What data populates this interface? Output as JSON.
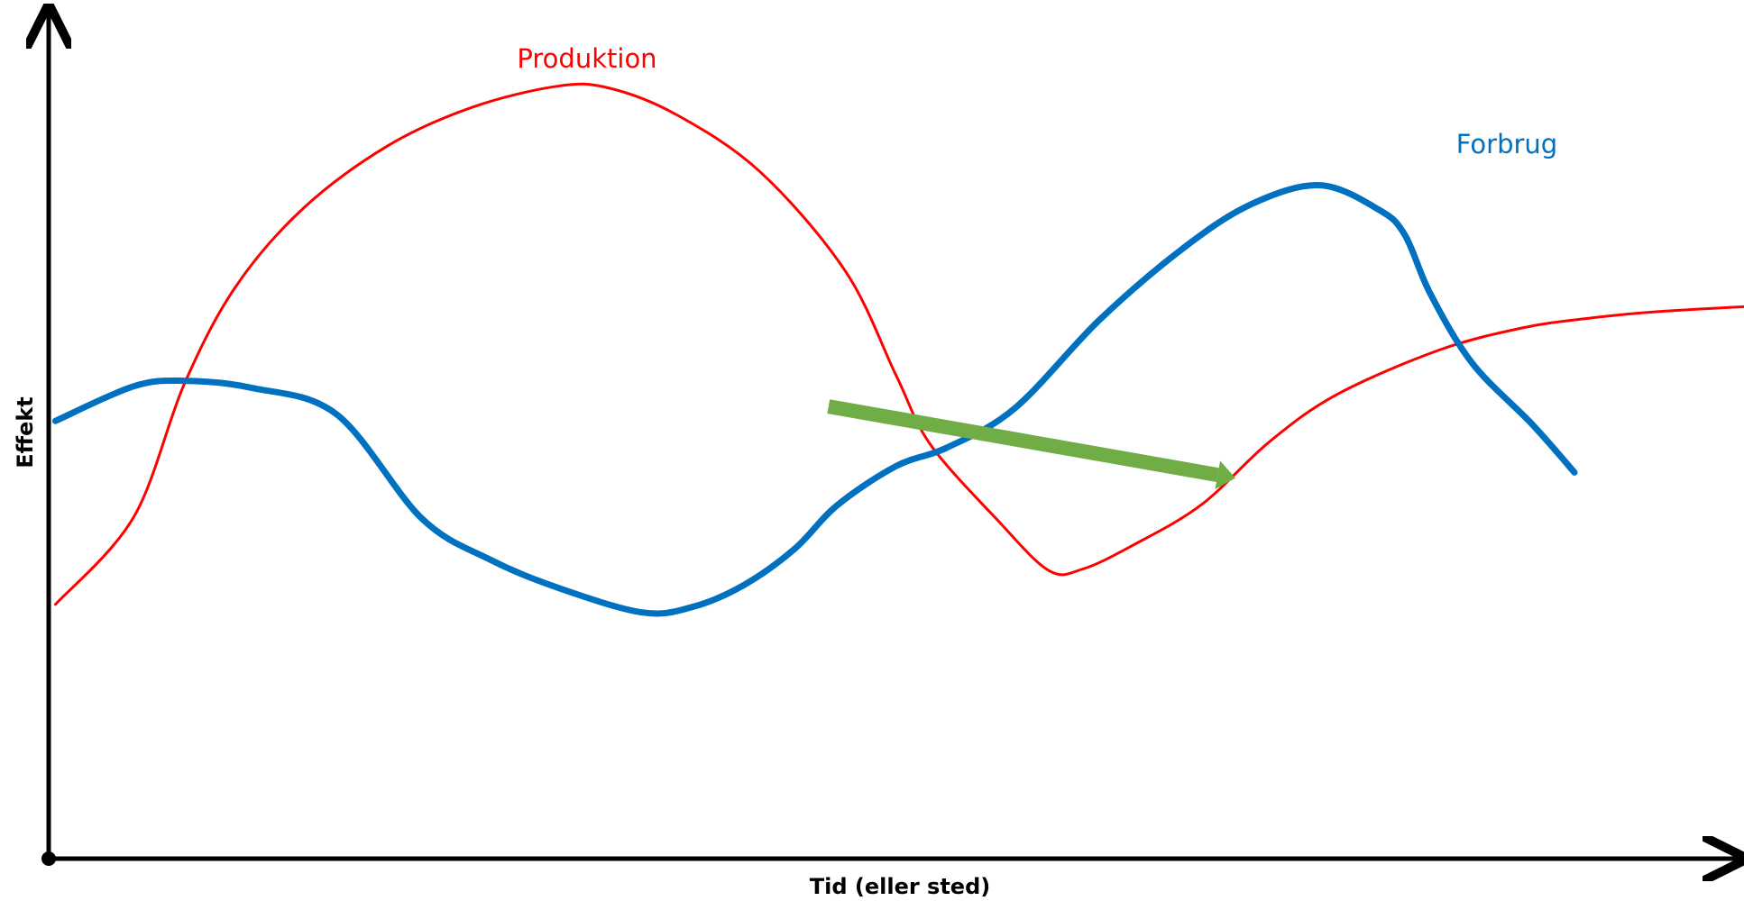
{
  "chart_data": {
    "type": "line",
    "title": "",
    "xlabel": "Tid (eller sted)",
    "ylabel": "Effekt",
    "xlim": [
      0,
      1
    ],
    "ylim": [
      0,
      1
    ],
    "grid": false,
    "legend": "none",
    "series": [
      {
        "name": "Produktion",
        "color": "#ff0000",
        "x": [
          0.004,
          0.05,
          0.08,
          0.11,
          0.15,
          0.2,
          0.25,
          0.3,
          0.33,
          0.37,
          0.42,
          0.47,
          0.5,
          0.52,
          0.56,
          0.59,
          0.61,
          0.64,
          0.68,
          0.72,
          0.76,
          0.82,
          0.87,
          0.91,
          0.95,
          1.0
        ],
        "y": [
          0.316,
          0.424,
          0.59,
          0.71,
          0.808,
          0.886,
          0.934,
          0.96,
          0.958,
          0.925,
          0.853,
          0.73,
          0.6,
          0.515,
          0.42,
          0.358,
          0.36,
          0.39,
          0.44,
          0.518,
          0.577,
          0.632,
          0.66,
          0.672,
          0.68,
          0.686
        ]
      },
      {
        "name": "Forbrug",
        "color": "#0070c0",
        "x": [
          0.004,
          0.05,
          0.08,
          0.12,
          0.17,
          0.22,
          0.26,
          0.3,
          0.35,
          0.38,
          0.41,
          0.44,
          0.465,
          0.5,
          0.53,
          0.57,
          0.62,
          0.67,
          0.71,
          0.75,
          0.785,
          0.8,
          0.815,
          0.84,
          0.875,
          0.9
        ],
        "y": [
          0.544,
          0.587,
          0.594,
          0.585,
          0.552,
          0.423,
          0.372,
          0.337,
          0.306,
          0.313,
          0.34,
          0.385,
          0.439,
          0.488,
          0.511,
          0.56,
          0.67,
          0.76,
          0.814,
          0.837,
          0.806,
          0.775,
          0.702,
          0.615,
          0.54,
          0.48
        ]
      }
    ],
    "labels": {
      "production": "Produktion",
      "consumption": "Forbrug"
    },
    "arrow": {
      "color": "#70ad47",
      "from": [
        0.46,
        0.562
      ],
      "to": [
        0.7,
        0.473
      ]
    }
  }
}
